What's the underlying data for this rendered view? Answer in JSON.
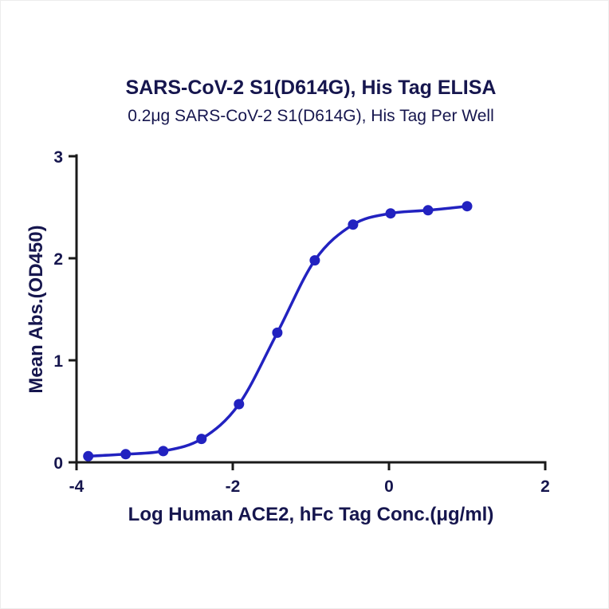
{
  "chart_data": {
    "type": "line",
    "title": "SARS-CoV-2 S1(D614G), His Tag ELISA",
    "subtitle": "0.2μg SARS-CoV-2 S1(D614G), His Tag Per Well",
    "xlabel": "Log Human ACE2, hFc Tag Conc.(μg/ml)",
    "ylabel": "Mean Abs.(OD450)",
    "xlim": [
      -4,
      2
    ],
    "ylim": [
      0,
      3
    ],
    "x_ticks": [
      -4,
      -2,
      0,
      2
    ],
    "y_ticks": [
      0,
      1,
      2,
      3
    ],
    "x": [
      -3.85,
      -3.37,
      -2.89,
      -2.4,
      -1.92,
      -1.43,
      -0.95,
      -0.46,
      0.02,
      0.5,
      1.0
    ],
    "y": [
      0.06,
      0.08,
      0.11,
      0.23,
      0.57,
      1.27,
      1.98,
      2.33,
      2.44,
      2.47,
      2.51
    ],
    "grid": false,
    "legend": "none"
  },
  "colors": {
    "curve": "#2222c0",
    "axis": "#1a1a1a",
    "text": "#16164e",
    "background": "#ffffff"
  }
}
